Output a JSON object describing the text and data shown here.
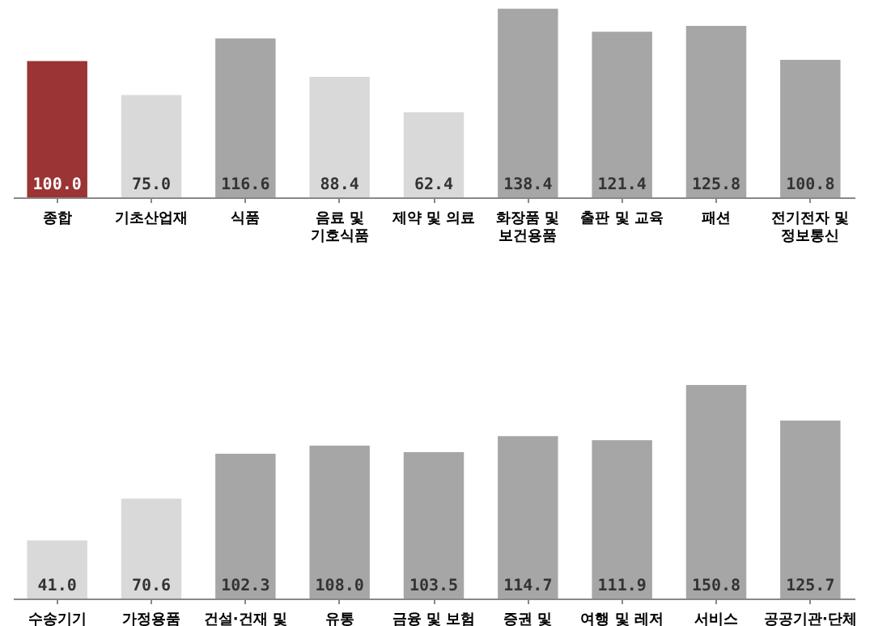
{
  "chart_data": [
    {
      "type": "bar",
      "data_labels": true,
      "categories": [
        "종합",
        "기초산업재",
        "식품",
        "음료 및\n기호식품",
        "제약 및 의료",
        "화장품 및\n보건용품",
        "출판 및 교육",
        "패션",
        "전기전자 및\n정보통신"
      ],
      "values": [
        100.0,
        75.0,
        116.6,
        88.4,
        62.4,
        138.4,
        121.4,
        125.8,
        100.8
      ],
      "colors": [
        "#9b3434",
        "#d9d9d9",
        "#a6a6a6",
        "#d9d9d9",
        "#d9d9d9",
        "#a6a6a6",
        "#a6a6a6",
        "#a6a6a6",
        "#a6a6a6"
      ],
      "value_labels": [
        "100.0",
        "75.0",
        "116.6",
        "88.4",
        "62.4",
        "138.4",
        "121.4",
        "125.8",
        "100.8"
      ]
    },
    {
      "type": "bar",
      "data_labels": true,
      "categories": [
        "수송기기",
        "가정용품",
        "건설·건재 및",
        "유통",
        "금융 및 보험",
        "증권 및",
        "여행 및 레저",
        "서비스",
        "공공기관·단체"
      ],
      "values": [
        41.0,
        70.6,
        102.3,
        108.0,
        103.5,
        114.7,
        111.9,
        150.8,
        125.7
      ],
      "colors": [
        "#d9d9d9",
        "#d9d9d9",
        "#a6a6a6",
        "#a6a6a6",
        "#a6a6a6",
        "#a6a6a6",
        "#a6a6a6",
        "#a6a6a6",
        "#a6a6a6"
      ],
      "value_labels": [
        "41.0",
        "70.6",
        "102.3",
        "108.0",
        "103.5",
        "114.7",
        "111.9",
        "150.8",
        "125.7"
      ]
    }
  ]
}
